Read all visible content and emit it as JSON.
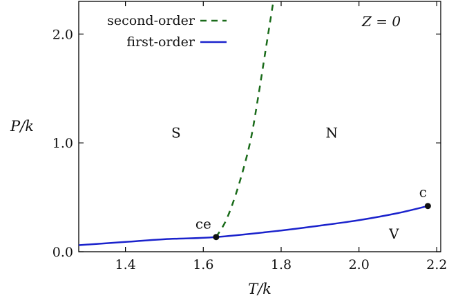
{
  "chart_data": {
    "type": "line",
    "title": "",
    "xlabel": "T/k",
    "ylabel": "P/k",
    "xlim": [
      1.28,
      2.21
    ],
    "ylim": [
      0.0,
      2.3
    ],
    "x_ticks": [
      1.4,
      1.6,
      1.8,
      2.0,
      2.2
    ],
    "x_tick_labels": [
      "1.4",
      "1.6",
      "1.8",
      "2.0",
      "2.2"
    ],
    "y_ticks": [
      0.0,
      1.0,
      2.0
    ],
    "y_tick_labels": [
      "0.0",
      "1.0",
      "2.0"
    ],
    "grid": false,
    "legend_position": "top-left",
    "annotation": "Z = 0",
    "series": [
      {
        "name": "second-order",
        "style": "dashed",
        "color": "#1a6b1a",
        "x": [
          1.633,
          1.66,
          1.69,
          1.72,
          1.74,
          1.76,
          1.78
        ],
        "y": [
          0.135,
          0.3,
          0.6,
          1.0,
          1.4,
          1.85,
          2.3
        ]
      },
      {
        "name": "first-order",
        "style": "solid",
        "color": "#1a22cc",
        "x": [
          1.28,
          1.4,
          1.5,
          1.633,
          1.8,
          1.9,
          2.0,
          2.1,
          2.177
        ],
        "y": [
          0.06,
          0.09,
          0.115,
          0.135,
          0.195,
          0.24,
          0.29,
          0.355,
          0.42
        ]
      }
    ],
    "points": [
      {
        "label": "ce",
        "x": 1.633,
        "y": 0.135
      },
      {
        "label": "c",
        "x": 2.177,
        "y": 0.42
      }
    ],
    "regions": [
      {
        "label": "S",
        "x": 1.53,
        "y": 1.05
      },
      {
        "label": "N",
        "x": 1.93,
        "y": 1.05
      },
      {
        "label": "V",
        "x": 2.09,
        "y": 0.12
      }
    ]
  }
}
